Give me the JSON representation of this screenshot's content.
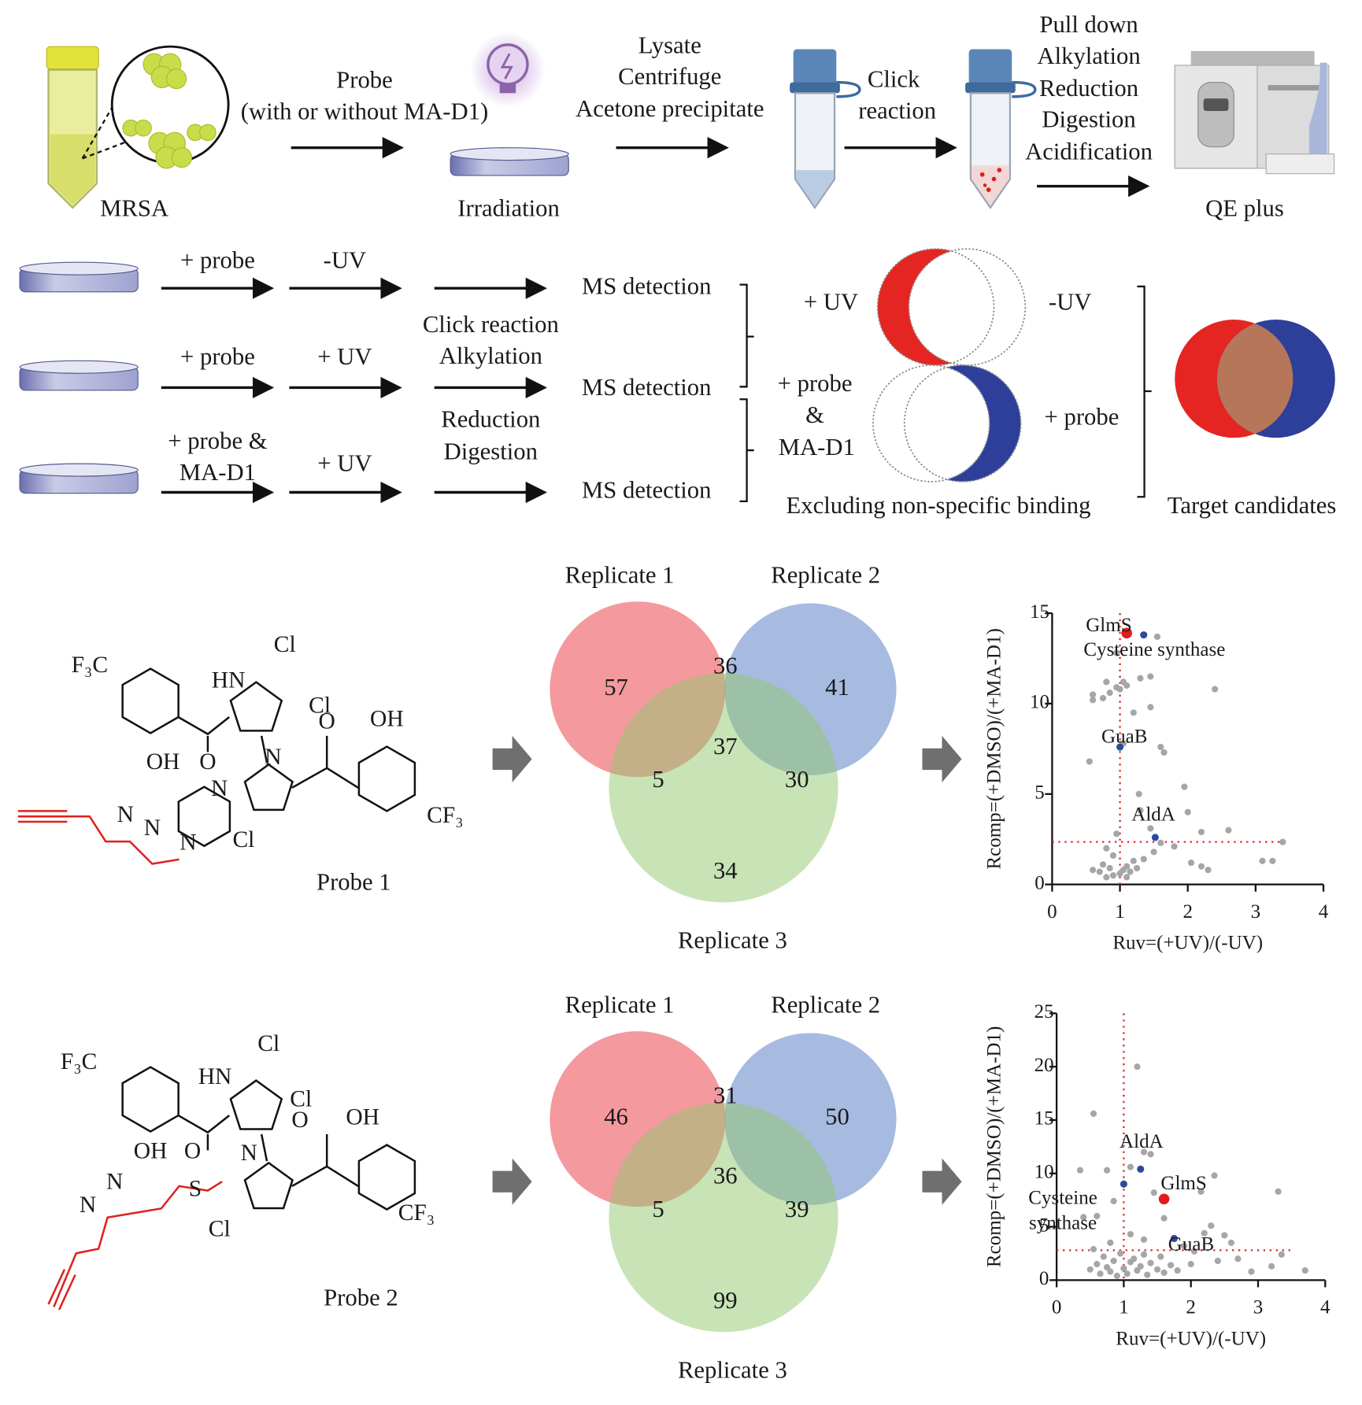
{
  "workflow": {
    "sample": "MRSA",
    "probe": "Probe",
    "probe_condition": "(with or without MA-D1)",
    "irradiation": "Irradiation",
    "lysis": [
      "Lysate",
      "Centrifuge",
      "Acetone precipitate"
    ],
    "click": [
      "Click",
      "reaction"
    ],
    "processing": [
      "Pull down",
      "Alkylation",
      "Reduction",
      "Digestion",
      "Acidification"
    ],
    "instrument": "QE plus"
  },
  "experiment": {
    "rows": [
      {
        "treatment": [
          "+ probe"
        ],
        "uv": "-UV",
        "detection": "MS detection"
      },
      {
        "treatment": [
          "+ probe"
        ],
        "uv": "+ UV",
        "detection": "MS detection"
      },
      {
        "treatment": [
          "+ probe &",
          "MA-D1"
        ],
        "uv": "+ UV",
        "detection": "MS detection"
      }
    ],
    "processing": [
      "Click reaction",
      "Alkylation",
      "Reduction",
      "Digestion"
    ],
    "venn_uv": {
      "left": "+ UV",
      "right": "-UV"
    },
    "venn_probe": {
      "left": [
        "+ probe",
        "&",
        "MA-D1"
      ],
      "right": "+ probe"
    },
    "exclusion_caption": "Excluding non-specific binding",
    "target_caption": "Target candidates"
  },
  "probes": [
    {
      "name": "Probe 1",
      "atoms": [
        "F₃C",
        "HN",
        "Cl",
        "Cl",
        "O",
        "OH",
        "OH",
        "O",
        "N",
        "N",
        "N",
        "N",
        "N",
        "Cl",
        "CF₃"
      ]
    },
    {
      "name": "Probe 2",
      "atoms": [
        "F₃C",
        "HN",
        "Cl",
        "Cl",
        "O",
        "OH",
        "OH",
        "O",
        "N",
        "S",
        "N",
        "N",
        "Cl",
        "CF₃"
      ]
    }
  ],
  "venns": [
    {
      "labels": [
        "Replicate 1",
        "Replicate 2",
        "Replicate 3"
      ],
      "regions": {
        "only_1": 57,
        "r12": 36,
        "only_2": 41,
        "all": 37,
        "r13": 5,
        "r23": 30,
        "only_3": 34
      }
    },
    {
      "labels": [
        "Replicate 1",
        "Replicate 2",
        "Replicate 3"
      ],
      "regions": {
        "only_1": 46,
        "r12": 31,
        "only_2": 50,
        "all": 36,
        "r13": 5,
        "r23": 39,
        "only_3": 99
      }
    }
  ],
  "chart_data": [
    {
      "type": "scatter",
      "xlabel": "Ruv=(+UV)/(-UV)",
      "ylabel": "Rcomp=(+DMSO)/(+MA-D1)",
      "xlim": [
        0,
        4
      ],
      "ylim": [
        0,
        15
      ],
      "xticks": [
        0,
        1,
        2,
        3,
        4
      ],
      "yticks": [
        0,
        5,
        10,
        15
      ],
      "thresholds": {
        "x": 1,
        "y": 2.35,
        "color": "#d62728"
      },
      "points": {
        "color": "#a6a6a6",
        "x": [
          0.6,
          0.6,
          0.75,
          0.85,
          0.95,
          0.8,
          0.95,
          1.05,
          1.1,
          1.3,
          1.45,
          1.55,
          0.55,
          1.0,
          1.2,
          1.45,
          1.6,
          1.05,
          1.65,
          1.3,
          1.95,
          1.28,
          1.45,
          2.0,
          2.2,
          2.4,
          2.6,
          3.4,
          3.1,
          3.25,
          2.05,
          2.2,
          2.3,
          1.8,
          1.6,
          0.8,
          0.9,
          0.6,
          0.7,
          0.75,
          0.85,
          0.9,
          1.0,
          1.05,
          1.1,
          1.15,
          1.2,
          1.25,
          1.35,
          1.5,
          0.95,
          0.8,
          1.1
        ],
        "y": [
          10.5,
          10.2,
          10.3,
          10.6,
          10.9,
          11.2,
          12.8,
          11.2,
          11.0,
          11.4,
          11.5,
          13.7,
          6.8,
          10.8,
          9.5,
          9.8,
          7.6,
          7.8,
          7.3,
          4.1,
          5.4,
          5.0,
          3.1,
          4.0,
          2.9,
          10.8,
          3.0,
          2.35,
          1.3,
          1.3,
          1.2,
          1.0,
          0.8,
          2.1,
          2.3,
          2.0,
          1.6,
          0.8,
          0.7,
          1.1,
          0.9,
          0.5,
          0.6,
          0.8,
          1.0,
          0.7,
          1.3,
          0.9,
          1.4,
          1.8,
          2.8,
          0.4,
          0.4
        ]
      },
      "highlights": [
        {
          "label": "GlmS",
          "x": 1.1,
          "y": 13.9,
          "color": "#e31a1c"
        },
        {
          "label": "Cysteine synthase",
          "x": 1.35,
          "y": 13.8,
          "color": "#2b4a9c"
        },
        {
          "label": "GuaB",
          "x": 1.0,
          "y": 7.6,
          "color": "#2b4a9c"
        },
        {
          "label": "AldA",
          "x": 1.52,
          "y": 2.6,
          "color": "#2b4a9c"
        }
      ]
    },
    {
      "type": "scatter",
      "xlabel": "Ruv=(+UV)/(-UV)",
      "ylabel": "Rcomp=(+DMSO)/(+MA-D1)",
      "xlim": [
        0,
        4
      ],
      "ylim": [
        0,
        25
      ],
      "xticks": [
        0,
        1,
        2,
        3,
        4
      ],
      "yticks": [
        0,
        5,
        10,
        15,
        20,
        25
      ],
      "thresholds": {
        "x": 1,
        "y": 2.8,
        "color": "#d62728"
      },
      "points": {
        "color": "#a6a6a6",
        "x": [
          0.55,
          1.2,
          0.35,
          0.75,
          1.3,
          1.4,
          1.1,
          0.85,
          0.6,
          0.4,
          1.45,
          2.15,
          2.35,
          3.3,
          1.6,
          2.3,
          2.5,
          2.6,
          3.2,
          3.7,
          2.2,
          1.9,
          2.05,
          1.3,
          1.1,
          0.8,
          0.55,
          0.5,
          0.6,
          0.65,
          0.7,
          0.75,
          0.8,
          0.85,
          0.9,
          0.95,
          1.0,
          1.05,
          1.1,
          1.15,
          1.2,
          1.25,
          1.3,
          1.35,
          1.4,
          1.5,
          1.55,
          1.6,
          1.7,
          1.8,
          2.0,
          2.4,
          2.7,
          3.35,
          2.9
        ],
        "y": [
          15.6,
          20,
          10.3,
          10.3,
          12,
          11.8,
          10.6,
          7.4,
          6.0,
          5.9,
          8.2,
          8.3,
          9.8,
          8.3,
          5.8,
          5.1,
          4.2,
          3.5,
          1.3,
          0.9,
          4.4,
          3.2,
          2.7,
          3.8,
          4.3,
          3.5,
          2.9,
          1.0,
          1.5,
          0.6,
          2.2,
          1.2,
          0.8,
          1.8,
          0.4,
          2.5,
          1.1,
          0.6,
          1.7,
          2.0,
          0.9,
          1.3,
          2.4,
          0.5,
          1.6,
          1.0,
          2.2,
          0.7,
          1.4,
          0.9,
          1.5,
          1.8,
          2.0,
          2.4,
          0.8
        ]
      },
      "highlights": [
        {
          "label": "AldA",
          "x": 1.25,
          "y": 10.4,
          "color": "#2b4a9c"
        },
        {
          "label": "GlmS",
          "x": 1.6,
          "y": 7.6,
          "color": "#e31a1c"
        },
        {
          "label": "Cysteine synthase",
          "x": 1.0,
          "y": 9.0,
          "color": "#2b4a9c"
        },
        {
          "label": "GuaB",
          "x": 1.75,
          "y": 3.9,
          "color": "#2b4a9c"
        }
      ]
    }
  ]
}
